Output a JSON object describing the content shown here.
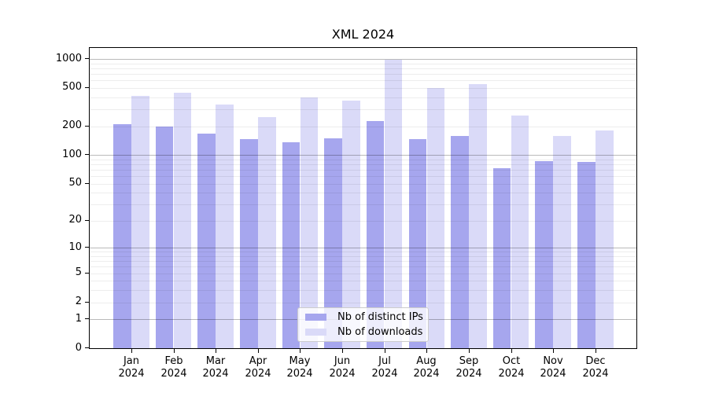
{
  "chart_data": {
    "type": "bar",
    "title": "XML 2024",
    "categories": [
      "Jan 2024",
      "Feb 2024",
      "Mar 2024",
      "Apr 2024",
      "May 2024",
      "Jun 2024",
      "Jul 2024",
      "Aug 2024",
      "Sep 2024",
      "Oct 2024",
      "Nov 2024",
      "Dec 2024"
    ],
    "series": [
      {
        "name": "Nb of distinct IPs",
        "color": "#a6a6ee",
        "values": [
          212,
          200,
          168,
          146,
          136,
          150,
          225,
          148,
          158,
          73,
          87,
          84
        ]
      },
      {
        "name": "Nb of downloads",
        "color": "#dadaf8",
        "values": [
          412,
          445,
          335,
          249,
          397,
          368,
          985,
          503,
          553,
          260,
          157,
          182
        ]
      }
    ],
    "yscale": "log1p",
    "ylim": [
      0,
      1350
    ],
    "yticks": [
      0,
      1,
      2,
      5,
      10,
      20,
      50,
      100,
      200,
      500,
      1000
    ],
    "ytick_labels": [
      "0",
      "1",
      "2",
      "5",
      "10",
      "20",
      "50",
      "100",
      "200",
      "500",
      "1000"
    ],
    "grid": "horizontal-major-and-minor",
    "legend_position": "lower center"
  }
}
